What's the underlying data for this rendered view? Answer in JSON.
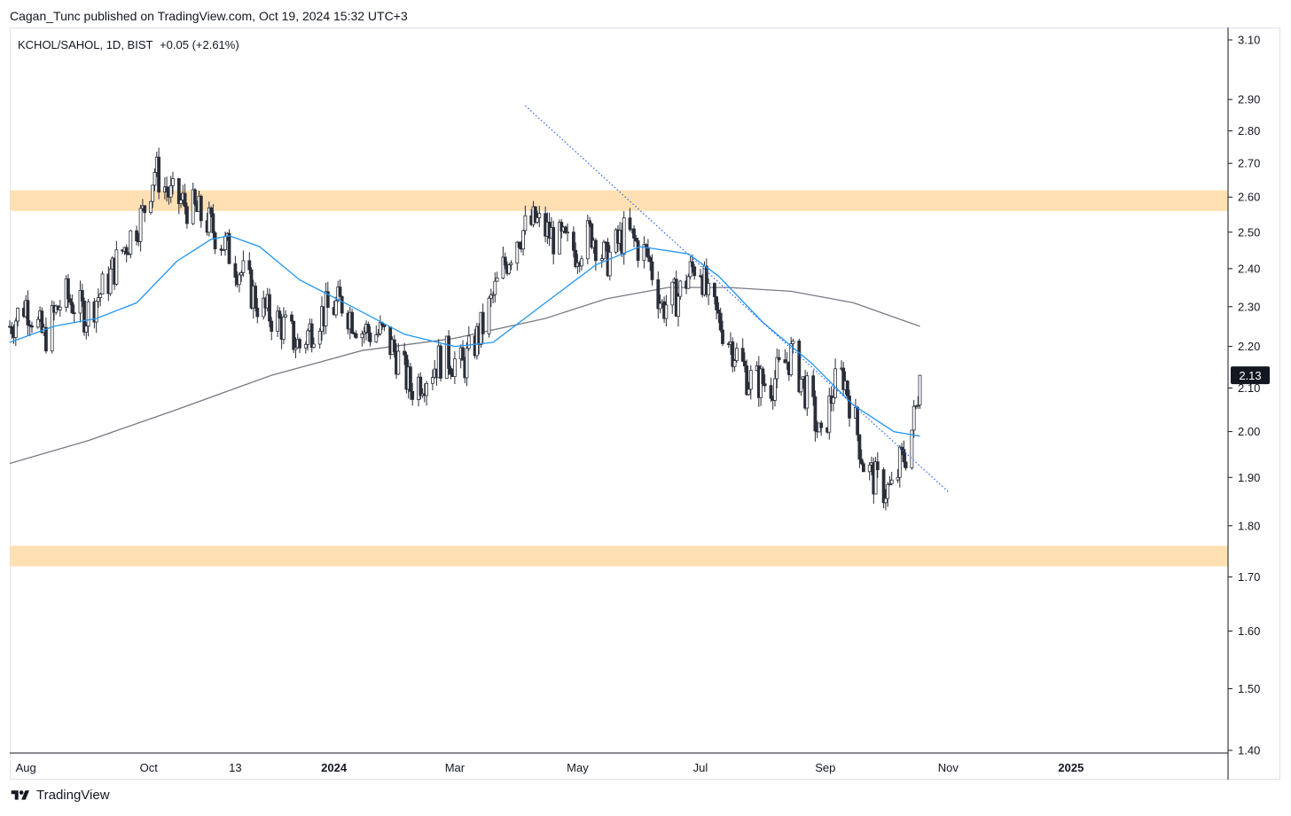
{
  "header": {
    "published_text": "Cagan_Tunc published on TradingView.com, Oct 19, 2024 15:32 UTC+3"
  },
  "legend": {
    "symbol": "KCHOL/SAHOL, 1D, BIST",
    "change": "+0.05 (+2.61%)"
  },
  "footer": {
    "brand": "TradingView"
  },
  "colors": {
    "candle": "#2a2e39",
    "ma_short": "#2196f3",
    "ma_long": "#787b86",
    "trendline": "#2962ff",
    "zone": "#ffe0b2",
    "price_label_bg": "#131722"
  },
  "chart_data": {
    "type": "candlestick",
    "y_scale": "log",
    "ylim": [
      1.4,
      3.1
    ],
    "y_ticks": [
      3.1,
      2.9,
      2.8,
      2.7,
      2.6,
      2.5,
      2.4,
      2.3,
      2.2,
      2.1,
      2.0,
      1.9,
      1.8,
      1.7,
      1.6,
      1.5,
      1.4
    ],
    "y_tick_labels": [
      "3.10",
      "2.90",
      "2.80",
      "2.70",
      "2.60",
      "2.50",
      "2.40",
      "2.30",
      "2.20",
      "2.10",
      "2.00",
      "1.90",
      "1.80",
      "1.70",
      "1.60",
      "1.50",
      "1.40"
    ],
    "x_range": [
      "2023-07-24",
      "2025-03-20"
    ],
    "x_ticks": [
      {
        "label": "Aug",
        "date": "2023-08-01",
        "bold": false
      },
      {
        "label": "Oct",
        "date": "2023-10-01",
        "bold": false
      },
      {
        "label": "13",
        "date": "2023-11-13",
        "bold": false
      },
      {
        "label": "2024",
        "date": "2024-01-01",
        "bold": true
      },
      {
        "label": "Mar",
        "date": "2024-03-01",
        "bold": false
      },
      {
        "label": "May",
        "date": "2024-05-01",
        "bold": false
      },
      {
        "label": "Jul",
        "date": "2024-07-01",
        "bold": false
      },
      {
        "label": "Sep",
        "date": "2024-09-01",
        "bold": false
      },
      {
        "label": "Nov",
        "date": "2024-11-01",
        "bold": false
      },
      {
        "label": "2025",
        "date": "2025-01-01",
        "bold": true
      }
    ],
    "last_price": 2.13,
    "last_price_label": "2.13",
    "price_path": [
      [
        "2023-07-24",
        2.25
      ],
      [
        "2023-08-01",
        2.31
      ],
      [
        "2023-08-10",
        2.22
      ],
      [
        "2023-08-20",
        2.33
      ],
      [
        "2023-08-31",
        2.28
      ],
      [
        "2023-09-10",
        2.36
      ],
      [
        "2023-09-20",
        2.47
      ],
      [
        "2023-09-28",
        2.55
      ],
      [
        "2023-10-04",
        2.68
      ],
      [
        "2023-10-12",
        2.6
      ],
      [
        "2023-10-22",
        2.57
      ],
      [
        "2023-10-30",
        2.53
      ],
      [
        "2023-11-07",
        2.47
      ],
      [
        "2023-11-15",
        2.4
      ],
      [
        "2023-11-25",
        2.3
      ],
      [
        "2023-12-05",
        2.26
      ],
      [
        "2023-12-15",
        2.2
      ],
      [
        "2023-12-25",
        2.28
      ],
      [
        "2024-01-05",
        2.31
      ],
      [
        "2024-01-15",
        2.24
      ],
      [
        "2024-01-25",
        2.23
      ],
      [
        "2024-02-01",
        2.18
      ],
      [
        "2024-02-08",
        2.1
      ],
      [
        "2024-02-15",
        2.13
      ],
      [
        "2024-02-25",
        2.18
      ],
      [
        "2024-03-05",
        2.15
      ],
      [
        "2024-03-15",
        2.25
      ],
      [
        "2024-03-25",
        2.4
      ],
      [
        "2024-04-01",
        2.49
      ],
      [
        "2024-04-10",
        2.53
      ],
      [
        "2024-04-20",
        2.48
      ],
      [
        "2024-04-30",
        2.45
      ],
      [
        "2024-05-08",
        2.5
      ],
      [
        "2024-05-15",
        2.42
      ],
      [
        "2024-05-25",
        2.5
      ],
      [
        "2024-06-05",
        2.43
      ],
      [
        "2024-06-12",
        2.3
      ],
      [
        "2024-06-20",
        2.33
      ],
      [
        "2024-06-30",
        2.43
      ],
      [
        "2024-07-05",
        2.31
      ],
      [
        "2024-07-15",
        2.22
      ],
      [
        "2024-07-25",
        2.12
      ],
      [
        "2024-08-05",
        2.11
      ],
      [
        "2024-08-15",
        2.18
      ],
      [
        "2024-08-25",
        2.06
      ],
      [
        "2024-08-30",
        1.97
      ],
      [
        "2024-09-05",
        2.1
      ],
      [
        "2024-09-10",
        2.13
      ],
      [
        "2024-09-15",
        2.04
      ],
      [
        "2024-09-20",
        1.93
      ],
      [
        "2024-09-28",
        1.88
      ],
      [
        "2024-10-05",
        1.87
      ],
      [
        "2024-10-08",
        1.93
      ],
      [
        "2024-10-12",
        1.96
      ],
      [
        "2024-10-16",
        2.05
      ],
      [
        "2024-10-18",
        2.13
      ]
    ],
    "ma_short": [
      [
        "2023-07-24",
        2.21
      ],
      [
        "2023-08-15",
        2.25
      ],
      [
        "2023-09-05",
        2.27
      ],
      [
        "2023-09-25",
        2.31
      ],
      [
        "2023-10-15",
        2.42
      ],
      [
        "2023-11-01",
        2.48
      ],
      [
        "2023-11-10",
        2.49
      ],
      [
        "2023-11-25",
        2.46
      ],
      [
        "2023-12-15",
        2.37
      ],
      [
        "2024-01-10",
        2.3
      ],
      [
        "2024-02-05",
        2.23
      ],
      [
        "2024-03-01",
        2.2
      ],
      [
        "2024-03-20",
        2.21
      ],
      [
        "2024-04-15",
        2.31
      ],
      [
        "2024-05-10",
        2.41
      ],
      [
        "2024-06-01",
        2.46
      ],
      [
        "2024-06-25",
        2.44
      ],
      [
        "2024-07-10",
        2.38
      ],
      [
        "2024-08-01",
        2.26
      ],
      [
        "2024-08-25",
        2.16
      ],
      [
        "2024-09-15",
        2.06
      ],
      [
        "2024-10-05",
        2.0
      ],
      [
        "2024-10-18",
        1.99
      ]
    ],
    "ma_long": [
      [
        "2023-07-24",
        1.93
      ],
      [
        "2023-09-01",
        1.98
      ],
      [
        "2023-10-15",
        2.05
      ],
      [
        "2023-12-01",
        2.13
      ],
      [
        "2024-01-15",
        2.19
      ],
      [
        "2024-03-01",
        2.22
      ],
      [
        "2024-04-15",
        2.27
      ],
      [
        "2024-05-15",
        2.32
      ],
      [
        "2024-06-15",
        2.35
      ],
      [
        "2024-07-15",
        2.35
      ],
      [
        "2024-08-15",
        2.34
      ],
      [
        "2024-09-15",
        2.31
      ],
      [
        "2024-10-18",
        2.25
      ]
    ],
    "trendline": {
      "start": [
        "2024-04-05",
        2.88
      ],
      "end": [
        "2024-11-01",
        1.87
      ],
      "style": "dotted"
    },
    "zones": [
      {
        "low": 2.56,
        "high": 2.62
      },
      {
        "low": 1.72,
        "high": 1.76
      }
    ]
  }
}
